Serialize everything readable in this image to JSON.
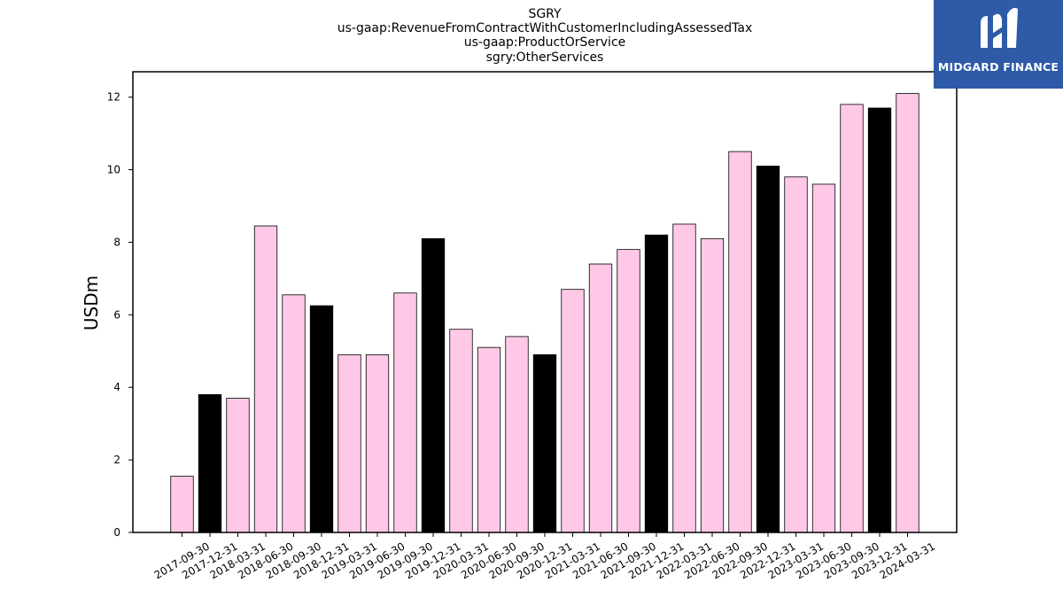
{
  "chart_data": {
    "type": "bar",
    "title_lines": [
      "SGRY",
      "us-gaap:RevenueFromContractWithCustomerIncludingAssessedTax",
      "us-gaap:ProductOrService",
      "sgry:OtherServices"
    ],
    "xlabel": "",
    "ylabel": "USDm",
    "ylim": [
      0,
      12.7
    ],
    "yticks": [
      0,
      2,
      4,
      6,
      8,
      10,
      12
    ],
    "grid": false,
    "categories": [
      "2017-09-30",
      "2017-12-31",
      "2018-03-31",
      "2018-06-30",
      "2018-09-30",
      "2018-12-31",
      "2019-03-31",
      "2019-06-30",
      "2019-09-30",
      "2019-12-31",
      "2020-03-31",
      "2020-06-30",
      "2020-09-30",
      "2020-12-31",
      "2021-03-31",
      "2021-06-30",
      "2021-09-30",
      "2021-12-31",
      "2022-03-31",
      "2022-06-30",
      "2022-09-30",
      "2022-12-31",
      "2023-03-31",
      "2023-06-30",
      "2023-09-30",
      "2023-12-31",
      "2024-03-31"
    ],
    "values": [
      1.55,
      3.8,
      3.7,
      8.45,
      6.55,
      6.25,
      4.9,
      4.9,
      6.6,
      8.1,
      5.6,
      5.1,
      5.4,
      4.9,
      6.7,
      7.4,
      7.8,
      8.2,
      8.5,
      8.1,
      10.5,
      10.1,
      9.8,
      9.6,
      11.8,
      11.7,
      12.1
    ],
    "bar_colors": {
      "quarter": "#ffc8e6",
      "year_end": "#000000",
      "edge": "#000000"
    }
  },
  "logo": {
    "text": "MIDGARD FINANCE",
    "icon": "midgard-m-logo-icon"
  }
}
